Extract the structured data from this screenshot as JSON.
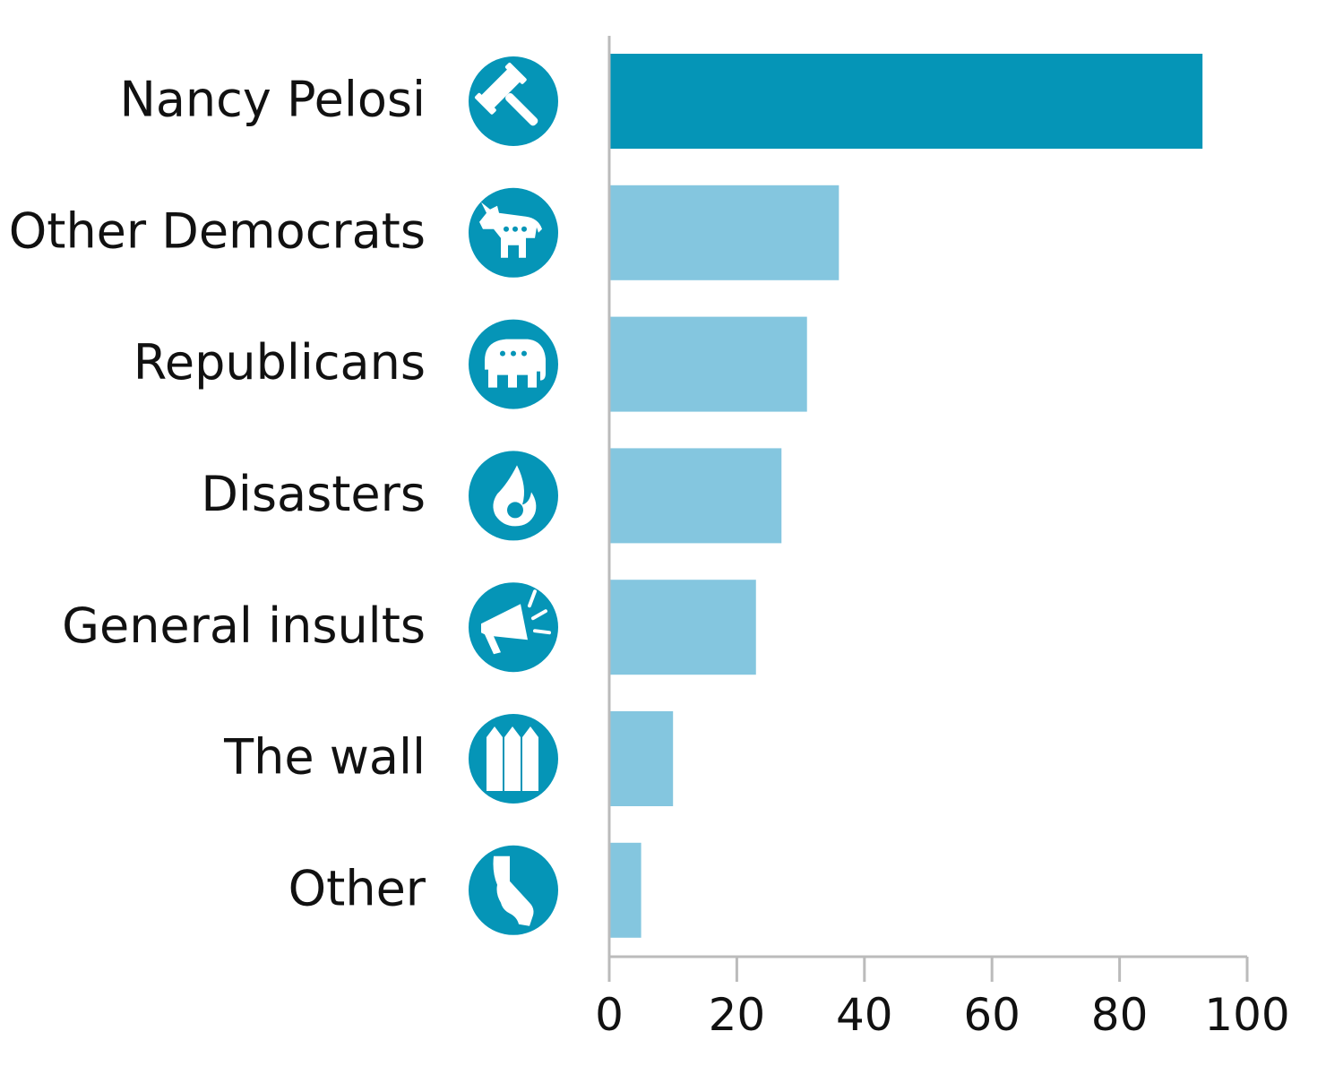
{
  "chart_data": {
    "type": "bar",
    "orientation": "horizontal",
    "title": "",
    "xlabel": "",
    "ylabel": "",
    "categories": [
      "Nancy Pelosi",
      "Other Democrats",
      "Republicans",
      "Disasters",
      "General insults",
      "The wall",
      "Other"
    ],
    "values": [
      93,
      36,
      31,
      27,
      23,
      10,
      5
    ],
    "icons": [
      "gavel-icon",
      "donkey-icon",
      "elephant-icon",
      "fire-icon",
      "megaphone-icon",
      "fence-icon",
      "california-icon"
    ],
    "xlim": [
      0,
      100
    ],
    "xticks": [
      "0",
      "20",
      "40",
      "60",
      "80",
      "100"
    ],
    "grid": false,
    "highlight_index": 0,
    "colors": {
      "highlight": "#0595b7",
      "bar": "#84c6df",
      "icon_bg": "#0595b7",
      "axis": "#bbbbbb"
    }
  }
}
